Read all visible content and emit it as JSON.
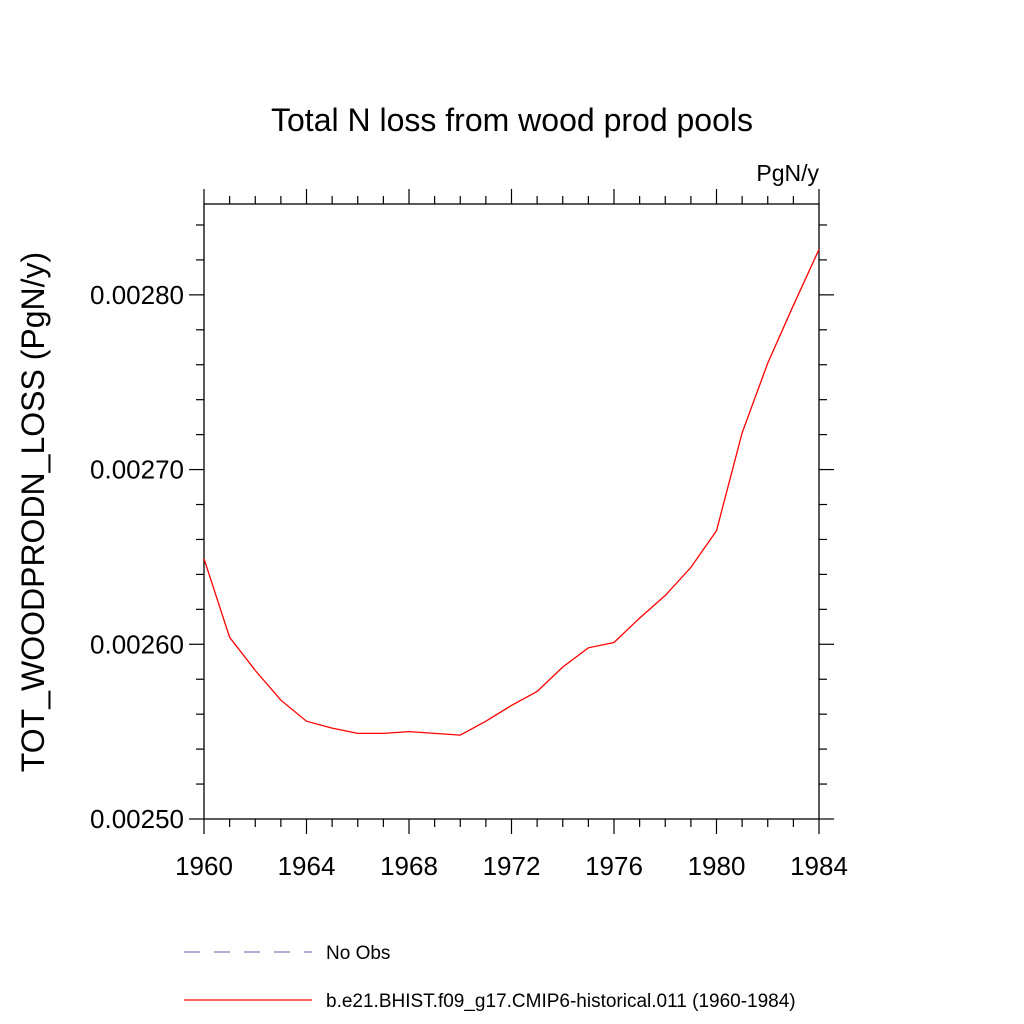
{
  "chart_data": {
    "type": "line",
    "title": "Total N loss from wood prod pools",
    "units_label": "PgN/y",
    "ylabel": "TOT_WOODPRODN_LOSS  (PgN/y)",
    "xlabel": "",
    "xlim": [
      1960,
      1984
    ],
    "ylim": [
      0.0025,
      0.002852
    ],
    "x_ticks": [
      1960,
      1964,
      1968,
      1972,
      1976,
      1980,
      1984
    ],
    "x_tick_labels": [
      "1960",
      "1964",
      "1968",
      "1972",
      "1976",
      "1980",
      "1984"
    ],
    "y_ticks": [
      0.0025,
      0.0026,
      0.0027,
      0.0028
    ],
    "y_tick_labels": [
      "0.00250",
      "0.00260",
      "0.00270",
      "0.00280"
    ],
    "grid": false,
    "legend_position": "bottom",
    "series": [
      {
        "name": "No Obs",
        "color": "#7f7fbf",
        "dash": "dashed",
        "x": [],
        "y": []
      },
      {
        "name": "b.e21.BHIST.f09_g17.CMIP6-historical.011 (1960-1984)",
        "color": "#ff0000",
        "dash": "solid",
        "x": [
          1960,
          1961,
          1962,
          1963,
          1964,
          1965,
          1966,
          1967,
          1968,
          1969,
          1970,
          1971,
          1972,
          1973,
          1974,
          1975,
          1976,
          1977,
          1978,
          1979,
          1980,
          1981,
          1982,
          1983,
          1984
        ],
        "y": [
          0.002649,
          0.002604,
          0.002585,
          0.002568,
          0.002556,
          0.002552,
          0.002549,
          0.002549,
          0.00255,
          0.002549,
          0.002548,
          0.002556,
          0.002565,
          0.002573,
          0.002587,
          0.002598,
          0.002601,
          0.002615,
          0.002628,
          0.002644,
          0.002665,
          0.002721,
          0.002761,
          0.002794,
          0.002826
        ]
      }
    ]
  }
}
